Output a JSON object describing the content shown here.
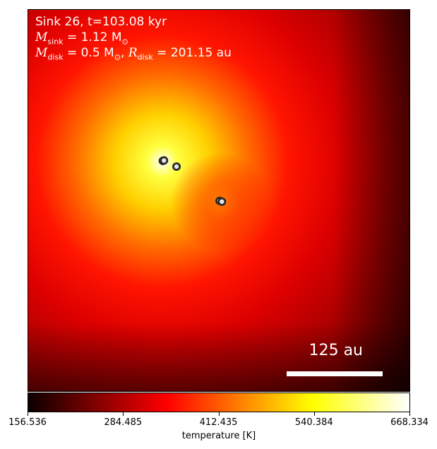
{
  "chart_data": {
    "type": "heatmap",
    "title_line1": "Sink 26, t=103.08 kyr",
    "sink_mass_label": "M",
    "sink_mass_sub": "sink",
    "sink_mass_value": " = 1.12 M",
    "sink_mass_unit_sub": "⊙",
    "disk_mass_label": "M",
    "disk_mass_sub": "disk",
    "disk_mass_value": " = 0.5 M",
    "disk_mass_unit_sub": "⊙",
    "disk_radius_sep": ", ",
    "disk_radius_label": "R",
    "disk_radius_sub": "disk",
    "disk_radius_value": " = 201.15 au",
    "scalebar_label": "125 au",
    "colorbar": {
      "label": "temperature [K]",
      "vmin": 156.536,
      "vmax": 668.334,
      "ticks": [
        "156.536",
        "284.485",
        "412.435",
        "540.384",
        "668.334"
      ],
      "colormap": "hot"
    },
    "peak_temperature_K": 668.334,
    "sinks": [
      {
        "x": 0.353,
        "y": 0.396
      },
      {
        "x": 0.356,
        "y": 0.395
      },
      {
        "x": 0.389,
        "y": 0.411
      },
      {
        "x": 0.502,
        "y": 0.501
      },
      {
        "x": 0.508,
        "y": 0.503
      }
    ]
  }
}
